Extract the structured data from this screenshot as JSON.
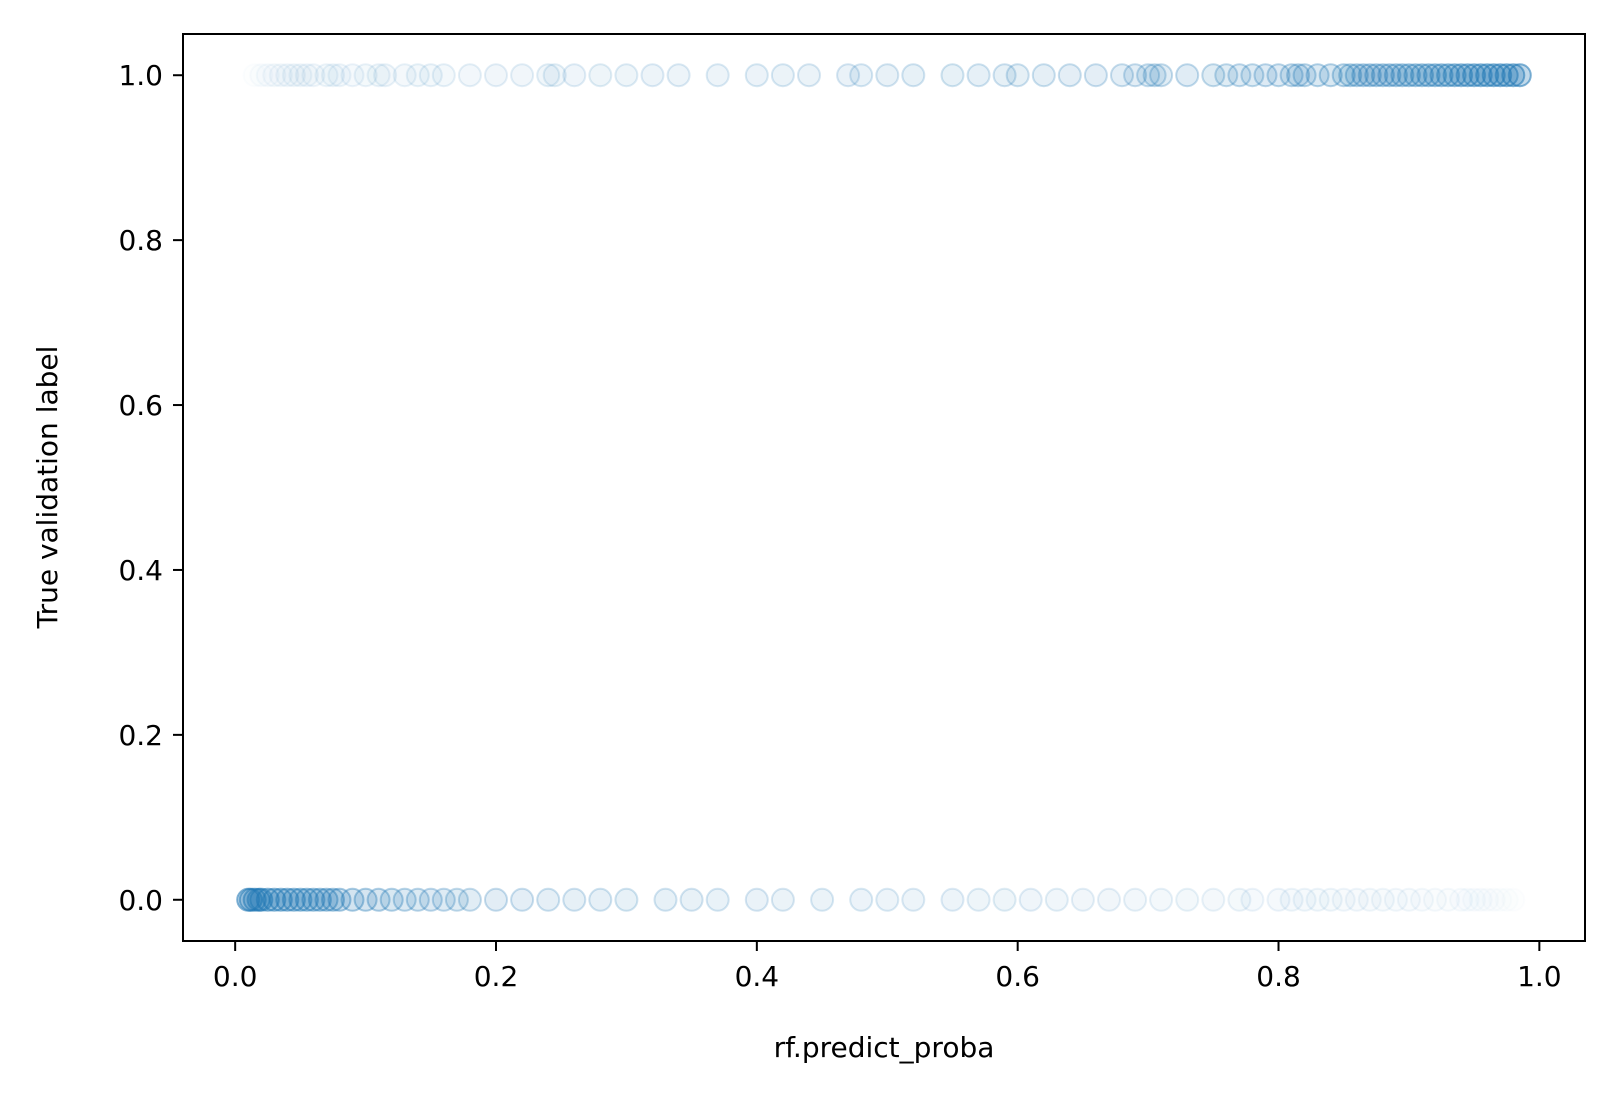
{
  "chart_data": {
    "type": "scatter",
    "title": "",
    "xlabel": "rf.predict_proba",
    "ylabel": "True validation label",
    "xlim": [
      -0.04,
      1.035
    ],
    "ylim": [
      -0.05,
      1.05
    ],
    "xticks": [
      0.0,
      0.2,
      0.4,
      0.6,
      0.8,
      1.0
    ],
    "xtick_labels": [
      "0.0",
      "0.2",
      "0.4",
      "0.6",
      "0.8",
      "1.0"
    ],
    "yticks": [
      0.0,
      0.2,
      0.4,
      0.6,
      0.8,
      1.0
    ],
    "ytick_labels": [
      "0.0",
      "0.2",
      "0.4",
      "0.6",
      "0.8",
      "1.0"
    ],
    "grid": false,
    "marker_color": "#1f77b4",
    "series": [
      {
        "y": 1,
        "x": [
          0.015,
          0.02,
          0.025,
          0.03,
          0.035,
          0.04,
          0.045,
          0.05,
          0.055,
          0.06,
          0.07,
          0.075,
          0.08,
          0.09,
          0.1,
          0.11,
          0.115,
          0.13,
          0.14,
          0.15,
          0.16,
          0.18,
          0.2,
          0.22,
          0.24,
          0.245,
          0.26,
          0.28,
          0.3,
          0.32,
          0.34,
          0.37,
          0.4,
          0.42,
          0.44,
          0.47,
          0.48,
          0.5,
          0.52,
          0.55,
          0.57,
          0.59,
          0.6,
          0.62,
          0.64,
          0.66,
          0.68,
          0.69,
          0.7,
          0.705,
          0.71,
          0.73,
          0.75,
          0.76,
          0.77,
          0.78,
          0.79,
          0.8,
          0.81,
          0.815,
          0.82,
          0.83,
          0.84,
          0.85,
          0.855,
          0.86,
          0.865,
          0.87,
          0.875,
          0.88,
          0.885,
          0.89,
          0.895,
          0.9,
          0.905,
          0.91,
          0.915,
          0.92,
          0.925,
          0.93,
          0.935,
          0.94,
          0.945,
          0.95,
          0.955,
          0.96,
          0.965,
          0.97,
          0.975,
          0.98,
          0.985
        ],
        "alpha": [
          0.03,
          0.05,
          0.07,
          0.09,
          0.1,
          0.11,
          0.12,
          0.12,
          0.13,
          0.13,
          0.14,
          0.14,
          0.15,
          0.16,
          0.17,
          0.17,
          0.18,
          0.18,
          0.19,
          0.2,
          0.2,
          0.21,
          0.22,
          0.23,
          0.24,
          0.24,
          0.25,
          0.26,
          0.27,
          0.28,
          0.29,
          0.3,
          0.31,
          0.32,
          0.33,
          0.34,
          0.35,
          0.36,
          0.37,
          0.38,
          0.39,
          0.4,
          0.41,
          0.42,
          0.43,
          0.44,
          0.45,
          0.46,
          0.47,
          0.48,
          0.48,
          0.49,
          0.5,
          0.51,
          0.52,
          0.53,
          0.54,
          0.55,
          0.56,
          0.57,
          0.58,
          0.59,
          0.6,
          0.61,
          0.62,
          0.63,
          0.64,
          0.65,
          0.66,
          0.67,
          0.68,
          0.69,
          0.7,
          0.71,
          0.72,
          0.74,
          0.76,
          0.78,
          0.8,
          0.82,
          0.84,
          0.86,
          0.88,
          0.9,
          0.92,
          0.94,
          0.96,
          0.97,
          0.98,
          0.99,
          1.0
        ]
      },
      {
        "y": 0,
        "x": [
          0.01,
          0.012,
          0.015,
          0.018,
          0.02,
          0.025,
          0.03,
          0.035,
          0.04,
          0.045,
          0.05,
          0.055,
          0.06,
          0.065,
          0.07,
          0.075,
          0.08,
          0.09,
          0.1,
          0.11,
          0.12,
          0.13,
          0.14,
          0.15,
          0.16,
          0.17,
          0.18,
          0.2,
          0.22,
          0.24,
          0.26,
          0.28,
          0.3,
          0.33,
          0.35,
          0.37,
          0.4,
          0.42,
          0.45,
          0.48,
          0.5,
          0.52,
          0.55,
          0.57,
          0.59,
          0.61,
          0.63,
          0.65,
          0.67,
          0.69,
          0.71,
          0.73,
          0.75,
          0.77,
          0.78,
          0.8,
          0.81,
          0.82,
          0.83,
          0.84,
          0.85,
          0.86,
          0.87,
          0.88,
          0.89,
          0.9,
          0.91,
          0.92,
          0.93,
          0.94,
          0.945,
          0.95,
          0.955,
          0.96,
          0.965,
          0.97,
          0.975,
          0.98
        ],
        "alpha": [
          1.0,
          0.99,
          0.98,
          0.97,
          0.96,
          0.95,
          0.93,
          0.91,
          0.89,
          0.87,
          0.85,
          0.83,
          0.81,
          0.79,
          0.77,
          0.75,
          0.73,
          0.7,
          0.67,
          0.64,
          0.61,
          0.58,
          0.56,
          0.54,
          0.52,
          0.5,
          0.48,
          0.46,
          0.44,
          0.42,
          0.4,
          0.39,
          0.38,
          0.37,
          0.36,
          0.35,
          0.34,
          0.33,
          0.32,
          0.31,
          0.3,
          0.29,
          0.28,
          0.27,
          0.26,
          0.25,
          0.24,
          0.23,
          0.22,
          0.21,
          0.2,
          0.19,
          0.18,
          0.17,
          0.16,
          0.16,
          0.15,
          0.15,
          0.14,
          0.14,
          0.13,
          0.13,
          0.12,
          0.12,
          0.11,
          0.11,
          0.1,
          0.09,
          0.08,
          0.07,
          0.06,
          0.05,
          0.05,
          0.04,
          0.04,
          0.03,
          0.03,
          0.02
        ]
      }
    ]
  }
}
